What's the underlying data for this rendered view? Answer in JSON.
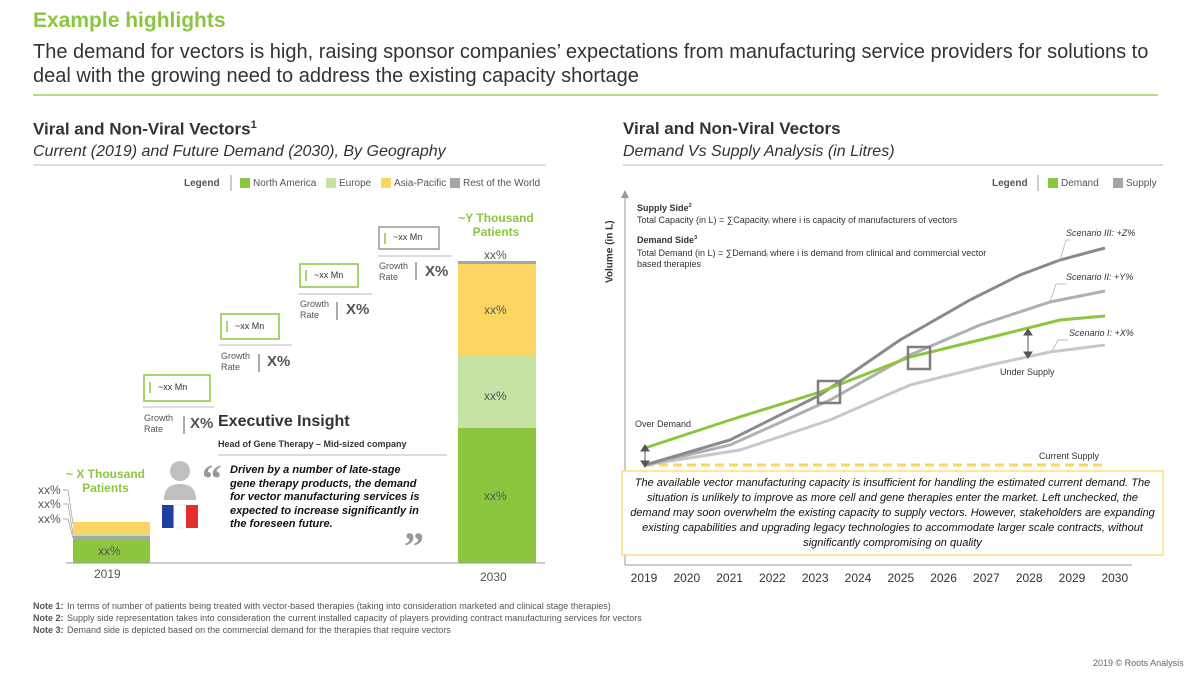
{
  "header": {
    "section": "Example highlights",
    "title": "The demand for vectors is high, raising sponsor companies’ expectations from manufacturing service providers for solutions to deal with the growing need to address the existing capacity shortage"
  },
  "left": {
    "title": "Viral and Non-Viral Vectors",
    "title_note": "1",
    "subtitle": "Current (2019) and Future Demand (2030), By Geography",
    "legend": {
      "title": "Legend",
      "items": [
        {
          "name": "North America",
          "color": "#8cc63f"
        },
        {
          "name": "Europe",
          "color": "#c5e3a5"
        },
        {
          "name": "Asia-Pacific",
          "color": "#fdd662"
        },
        {
          "name": "Rest of the World",
          "color": "#a6a6a6"
        }
      ]
    },
    "bar_2019": {
      "patients": "~ X Thousand Patients",
      "segment_labels": [
        "xx%",
        "xx%",
        "xx%"
      ],
      "base_label": "xx%",
      "year": "2019"
    },
    "bar_2030": {
      "patients": "~Y Thousand Patients",
      "segment_labels": [
        "xx%",
        "xx%",
        "xx%",
        "xx%"
      ],
      "year": "2030"
    },
    "steps": [
      {
        "value": "~xx Mn",
        "growth_label": "Growth Rate",
        "growth": "X%"
      },
      {
        "value": "~xx Mn",
        "growth_label": "Growth Rate",
        "growth": "X%"
      },
      {
        "value": "~xx Mn",
        "growth_label": "Growth Rate",
        "growth": "X%"
      },
      {
        "value": "~xx Mn",
        "growth_label": "Growth Rate",
        "growth": "X%"
      }
    ],
    "insight": {
      "title": "Executive Insight",
      "speaker": "Head of Gene Therapy – Mid-sized company",
      "quote": "Driven by a number of late-stage gene therapy products, the demand for vector manufacturing services is expected to increase significantly in the foreseen future."
    }
  },
  "right": {
    "title": "Viral and Non-Viral Vectors",
    "subtitle": "Demand Vs Supply Analysis (in Litres)",
    "legend": {
      "title": "Legend",
      "items": [
        {
          "name": "Demand",
          "color": "#8cc63f"
        },
        {
          "name": "Supply",
          "color": "#a6a6a6"
        }
      ]
    },
    "y_axis_label": "Volume (in L)",
    "supply_side": {
      "title": "Supply Side",
      "note": "2",
      "formula": "Total Capacity (in L) = ∑Capacityᵢ  where i is capacity of manufacturers of vectors"
    },
    "demand_side": {
      "title": "Demand Side",
      "note": "3",
      "formula": "Total Demand (in L) = ∑Demandᵢ  where i is demand from clinical and commercial vector based therapies"
    },
    "annotations": {
      "scenario_3": "Scenario III: +Z%",
      "scenario_2": "Scenario II: +Y%",
      "scenario_1": "Scenario I: +X%",
      "under_supply": "Under Supply",
      "over_demand": "Over Demand",
      "current_supply": "Current Supply"
    },
    "summary": "The available vector manufacturing capacity is insufficient for handling the estimated current demand. The situation is unlikely to improve as more cell and gene therapies enter the market. Left unchecked, the demand may soon overwhelm the existing capacity to supply vectors. However, stakeholders are expanding existing capabilities and upgrading legacy technologies to accommodate larger scale contracts, without significantly compromising on quality",
    "x_labels": [
      2019,
      2020,
      2021,
      2022,
      2023,
      2024,
      2025,
      2026,
      2027,
      2028,
      2029,
      2030
    ]
  },
  "notes": [
    {
      "label": "Note 1:",
      "text": "In terms of number of patients being treated with vector-based therapies (taking into consideration marketed and clinical stage therapies)"
    },
    {
      "label": "Note 2:",
      "text": "Supply side representation takes into consideration the current installed capacity of players providing contract manufacturing services for vectors"
    },
    {
      "label": "Note 3:",
      "text": "Demand side is depicted based on the commercial demand for the therapies that require vectors"
    }
  ],
  "footer": "2019 © Roots Analysis"
}
